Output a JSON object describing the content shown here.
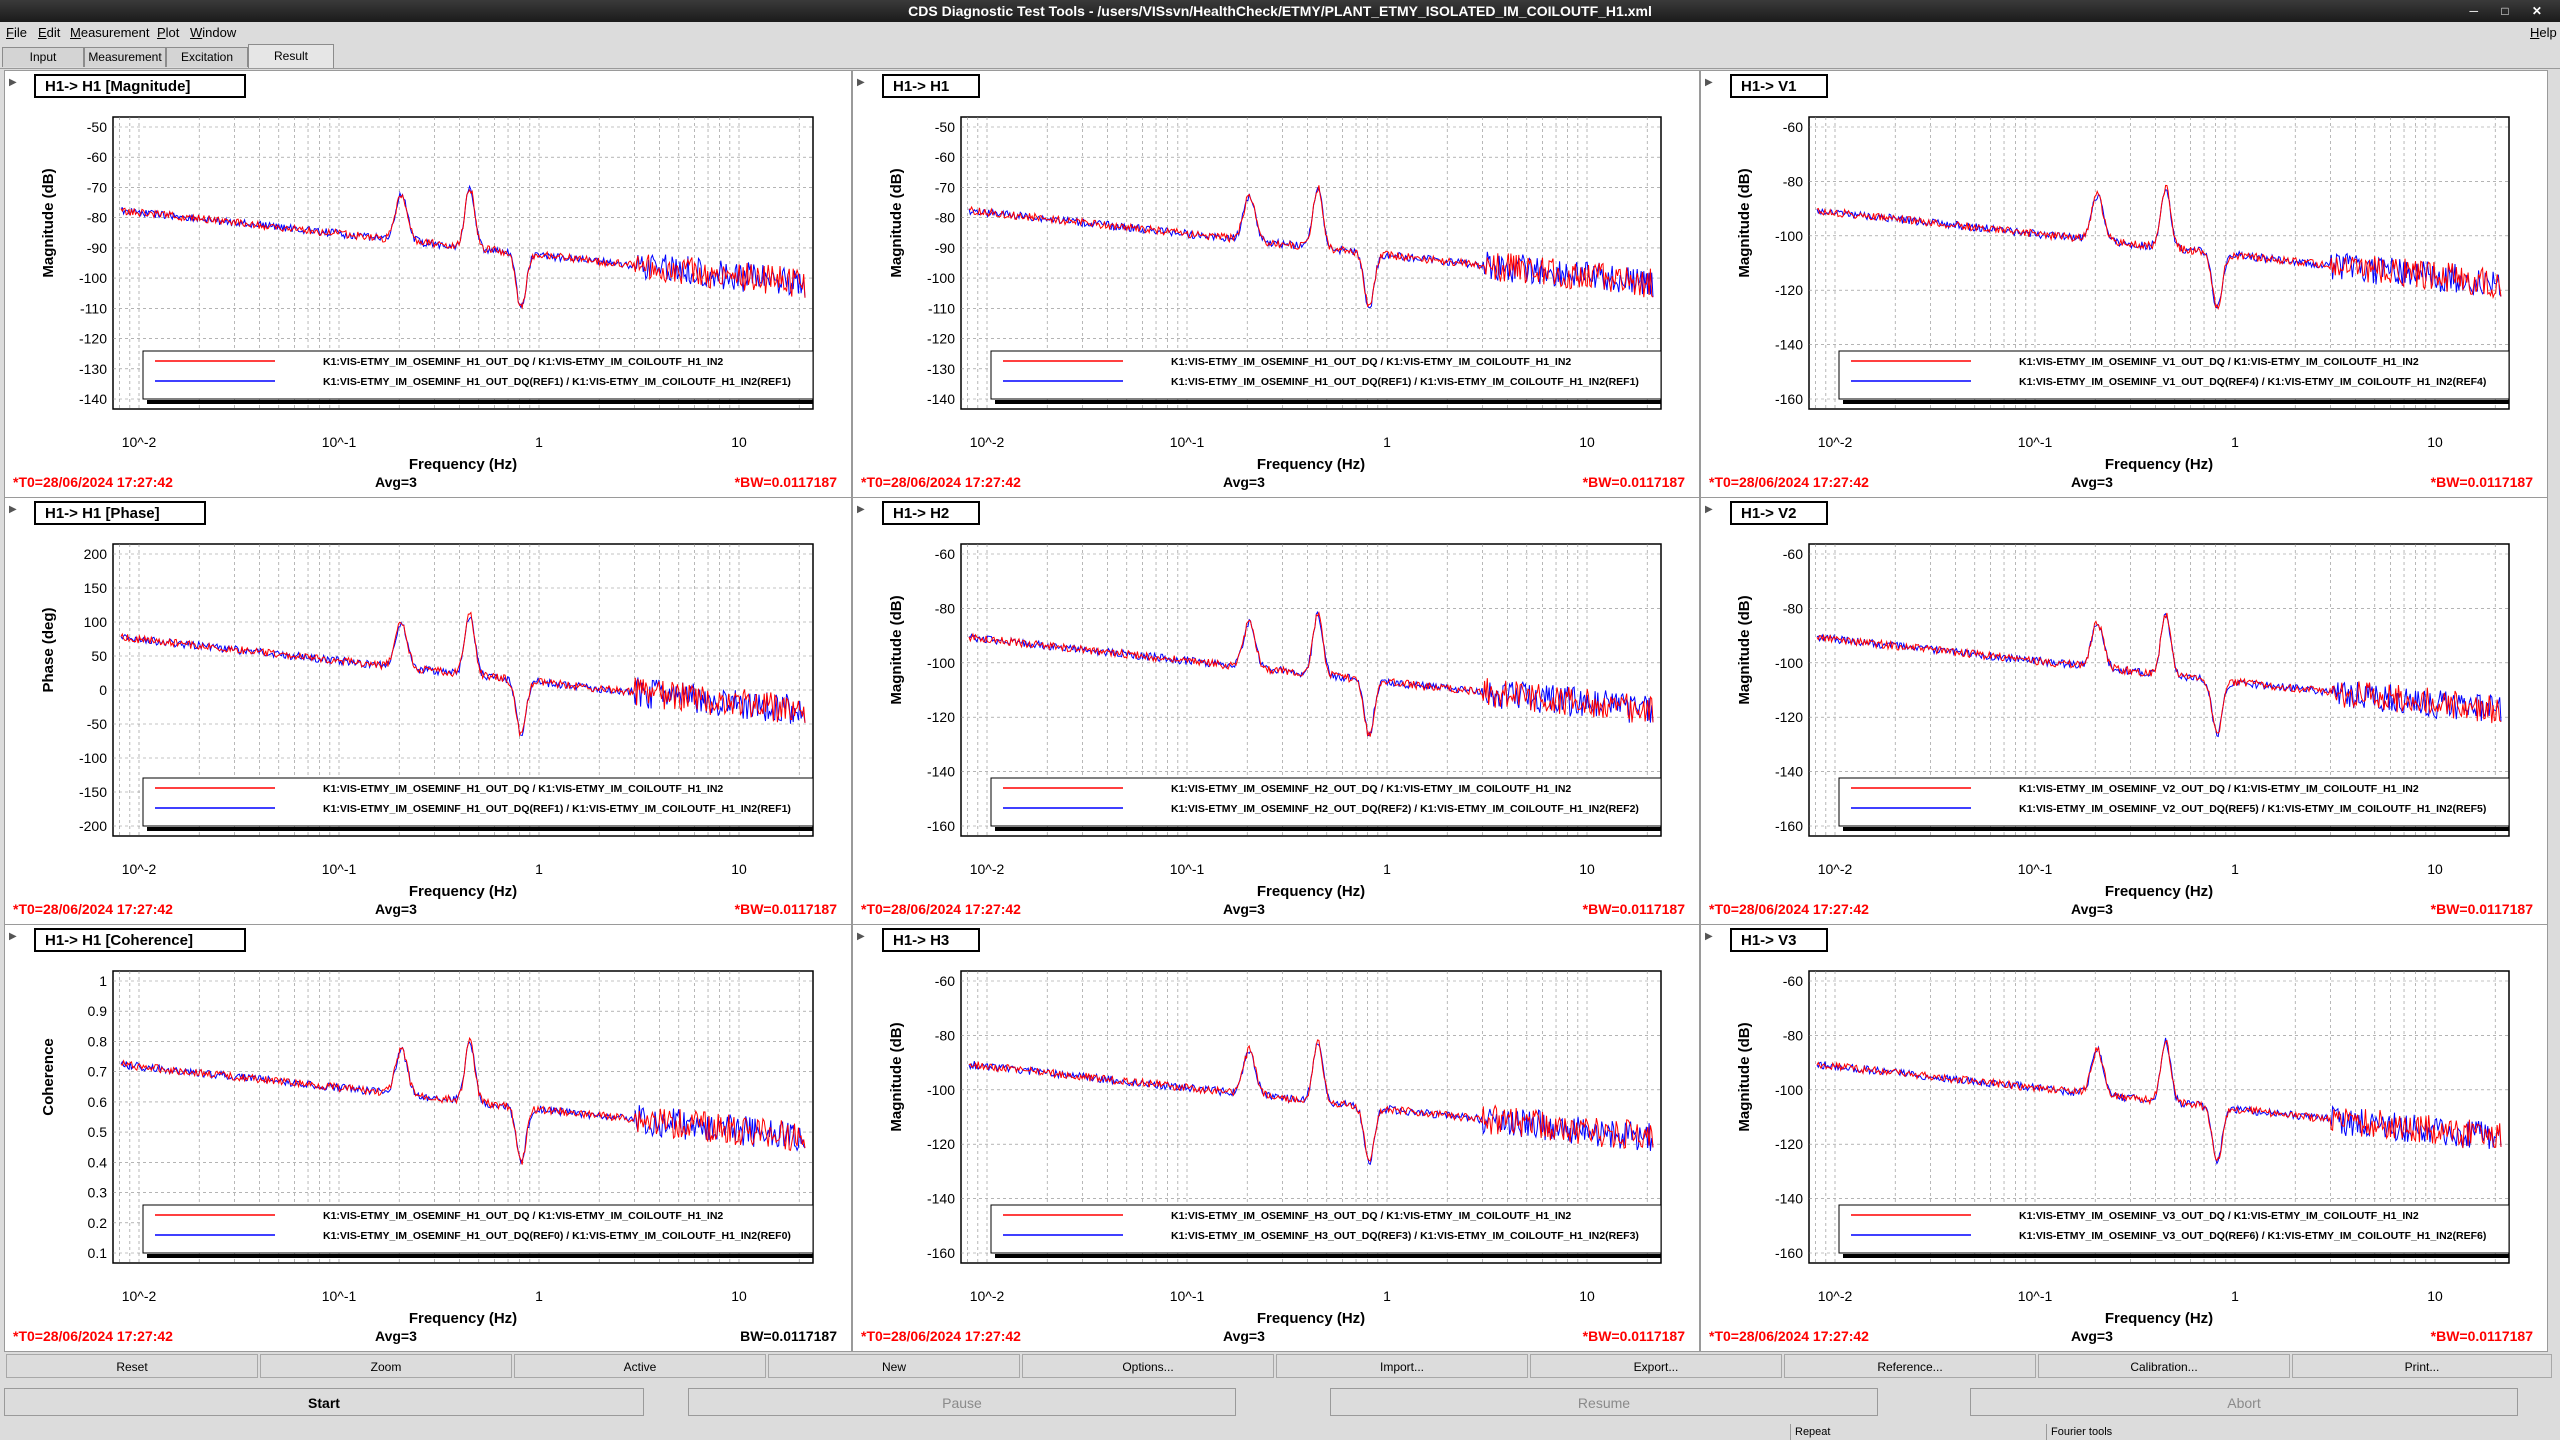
{
  "window": {
    "title": "CDS Diagnostic Test Tools - /users/VISsvn/HealthCheck/ETMY/PLANT_ETMY_ISOLATED_IM_COILOUTF_H1.xml"
  },
  "menubar": {
    "items": [
      "File",
      "Edit",
      "Measurement",
      "Plot",
      "Window"
    ],
    "help": "Help"
  },
  "tabs": [
    {
      "label": "Input",
      "active": false
    },
    {
      "label": "Measurement",
      "active": false
    },
    {
      "label": "Excitation",
      "active": false
    },
    {
      "label": "Result",
      "active": true
    }
  ],
  "colors": {
    "series_live": "#ff0000",
    "series_ref": "#0000ff",
    "footer_text": "#ff0000"
  },
  "panels": [
    {
      "title": "H1-> H1 [Magnitude]",
      "ylabel": "Magnitude (dB)",
      "xlabel": "Frequency (Hz)",
      "yticks": [
        "-50",
        "-60",
        "-70",
        "-80",
        "-90",
        "-100",
        "-110",
        "-120",
        "-130",
        "-140"
      ],
      "xticks": [
        "10^-2",
        "10^-1",
        "1",
        "10"
      ],
      "legend": [
        "K1:VIS-ETMY_IM_OSEMINF_H1_OUT_DQ / K1:VIS-ETMY_IM_COILOUTF_H1_IN2",
        "K1:VIS-ETMY_IM_OSEMINF_H1_OUT_DQ(REF1) / K1:VIS-ETMY_IM_COILOUTF_H1_IN2(REF1)"
      ],
      "footer": {
        "t0": "*T0=28/06/2024 17:27:42",
        "avg": "Avg=3",
        "bw": "*BW=0.0117187"
      }
    },
    {
      "title": "H1-> H1",
      "ylabel": "Magnitude (dB)",
      "xlabel": "Frequency (Hz)",
      "yticks": [
        "-50",
        "-60",
        "-70",
        "-80",
        "-90",
        "-100",
        "-110",
        "-120",
        "-130",
        "-140"
      ],
      "xticks": [
        "10^-2",
        "10^-1",
        "1",
        "10"
      ],
      "legend": [
        "K1:VIS-ETMY_IM_OSEMINF_H1_OUT_DQ / K1:VIS-ETMY_IM_COILOUTF_H1_IN2",
        "K1:VIS-ETMY_IM_OSEMINF_H1_OUT_DQ(REF1) / K1:VIS-ETMY_IM_COILOUTF_H1_IN2(REF1)"
      ],
      "footer": {
        "t0": "*T0=28/06/2024 17:27:42",
        "avg": "Avg=3",
        "bw": "*BW=0.0117187"
      }
    },
    {
      "title": "H1-> V1",
      "ylabel": "Magnitude (dB)",
      "xlabel": "Frequency (Hz)",
      "yticks": [
        "-60",
        "-80",
        "-100",
        "-120",
        "-140",
        "-160"
      ],
      "xticks": [
        "10^-2",
        "10^-1",
        "1",
        "10"
      ],
      "legend": [
        "K1:VIS-ETMY_IM_OSEMINF_V1_OUT_DQ / K1:VIS-ETMY_IM_COILOUTF_H1_IN2",
        "K1:VIS-ETMY_IM_OSEMINF_V1_OUT_DQ(REF4) / K1:VIS-ETMY_IM_COILOUTF_H1_IN2(REF4)"
      ],
      "footer": {
        "t0": "*T0=28/06/2024 17:27:42",
        "avg": "Avg=3",
        "bw": "*BW=0.0117187"
      }
    },
    {
      "title": "H1-> H1 [Phase]",
      "ylabel": "Phase (deg)",
      "xlabel": "Frequency (Hz)",
      "yticks": [
        "200",
        "150",
        "100",
        "50",
        "0",
        "-50",
        "-100",
        "-150",
        "-200"
      ],
      "xticks": [
        "10^-2",
        "10^-1",
        "1",
        "10"
      ],
      "legend": [
        "K1:VIS-ETMY_IM_OSEMINF_H1_OUT_DQ / K1:VIS-ETMY_IM_COILOUTF_H1_IN2",
        "K1:VIS-ETMY_IM_OSEMINF_H1_OUT_DQ(REF1) / K1:VIS-ETMY_IM_COILOUTF_H1_IN2(REF1)"
      ],
      "footer": {
        "t0": "*T0=28/06/2024 17:27:42",
        "avg": "Avg=3",
        "bw": "*BW=0.0117187"
      }
    },
    {
      "title": "H1-> H2",
      "ylabel": "Magnitude (dB)",
      "xlabel": "Frequency (Hz)",
      "yticks": [
        "-60",
        "-80",
        "-100",
        "-120",
        "-140",
        "-160"
      ],
      "xticks": [
        "10^-2",
        "10^-1",
        "1",
        "10"
      ],
      "legend": [
        "K1:VIS-ETMY_IM_OSEMINF_H2_OUT_DQ / K1:VIS-ETMY_IM_COILOUTF_H1_IN2",
        "K1:VIS-ETMY_IM_OSEMINF_H2_OUT_DQ(REF2) / K1:VIS-ETMY_IM_COILOUTF_H1_IN2(REF2)"
      ],
      "footer": {
        "t0": "*T0=28/06/2024 17:27:42",
        "avg": "Avg=3",
        "bw": "*BW=0.0117187"
      }
    },
    {
      "title": "H1-> V2",
      "ylabel": "Magnitude (dB)",
      "xlabel": "Frequency (Hz)",
      "yticks": [
        "-60",
        "-80",
        "-100",
        "-120",
        "-140",
        "-160"
      ],
      "xticks": [
        "10^-2",
        "10^-1",
        "1",
        "10"
      ],
      "legend": [
        "K1:VIS-ETMY_IM_OSEMINF_V2_OUT_DQ / K1:VIS-ETMY_IM_COILOUTF_H1_IN2",
        "K1:VIS-ETMY_IM_OSEMINF_V2_OUT_DQ(REF5) / K1:VIS-ETMY_IM_COILOUTF_H1_IN2(REF5)"
      ],
      "footer": {
        "t0": "*T0=28/06/2024 17:27:42",
        "avg": "Avg=3",
        "bw": "*BW=0.0117187"
      }
    },
    {
      "title": "H1-> H1 [Coherence]",
      "ylabel": "Coherence",
      "xlabel": "Frequency (Hz)",
      "yticks": [
        "1",
        "0.9",
        "0.8",
        "0.7",
        "0.6",
        "0.5",
        "0.4",
        "0.3",
        "0.2",
        "0.1"
      ],
      "xticks": [
        "10^-2",
        "10^-1",
        "1",
        "10"
      ],
      "legend": [
        "K1:VIS-ETMY_IM_OSEMINF_H1_OUT_DQ / K1:VIS-ETMY_IM_COILOUTF_H1_IN2",
        "K1:VIS-ETMY_IM_OSEMINF_H1_OUT_DQ(REF0) / K1:VIS-ETMY_IM_COILOUTF_H1_IN2(REF0)"
      ],
      "footer": {
        "t0": "*T0=28/06/2024 17:27:42",
        "avg": "Avg=3",
        "bw": "BW=0.0117187"
      }
    },
    {
      "title": "H1-> H3",
      "ylabel": "Magnitude (dB)",
      "xlabel": "Frequency (Hz)",
      "yticks": [
        "-60",
        "-80",
        "-100",
        "-120",
        "-140",
        "-160"
      ],
      "xticks": [
        "10^-2",
        "10^-1",
        "1",
        "10"
      ],
      "legend": [
        "K1:VIS-ETMY_IM_OSEMINF_H3_OUT_DQ / K1:VIS-ETMY_IM_COILOUTF_H1_IN2",
        "K1:VIS-ETMY_IM_OSEMINF_H3_OUT_DQ(REF3) / K1:VIS-ETMY_IM_COILOUTF_H1_IN2(REF3)"
      ],
      "footer": {
        "t0": "*T0=28/06/2024 17:27:42",
        "avg": "Avg=3",
        "bw": "*BW=0.0117187"
      }
    },
    {
      "title": "H1-> V3",
      "ylabel": "Magnitude (dB)",
      "xlabel": "Frequency (Hz)",
      "yticks": [
        "-60",
        "-80",
        "-100",
        "-120",
        "-140",
        "-160"
      ],
      "xticks": [
        "10^-2",
        "10^-1",
        "1",
        "10"
      ],
      "legend": [
        "K1:VIS-ETMY_IM_OSEMINF_V3_OUT_DQ / K1:VIS-ETMY_IM_COILOUTF_H1_IN2",
        "K1:VIS-ETMY_IM_OSEMINF_V3_OUT_DQ(REF6) / K1:VIS-ETMY_IM_COILOUTF_H1_IN2(REF6)"
      ],
      "footer": {
        "t0": "*T0=28/06/2024 17:27:42",
        "avg": "Avg=3",
        "bw": "*BW=0.0117187"
      }
    }
  ],
  "toolbar": [
    "Reset",
    "Zoom",
    "Active",
    "New",
    "Options...",
    "Import...",
    "Export...",
    "Reference...",
    "Calibration...",
    "Print..."
  ],
  "controls": [
    {
      "label": "Start",
      "enabled": true
    },
    {
      "label": "Pause",
      "enabled": false
    },
    {
      "label": "Resume",
      "enabled": false
    },
    {
      "label": "Abort",
      "enabled": false
    }
  ],
  "statusbar": [
    "Repeat",
    "Fourier tools"
  ]
}
